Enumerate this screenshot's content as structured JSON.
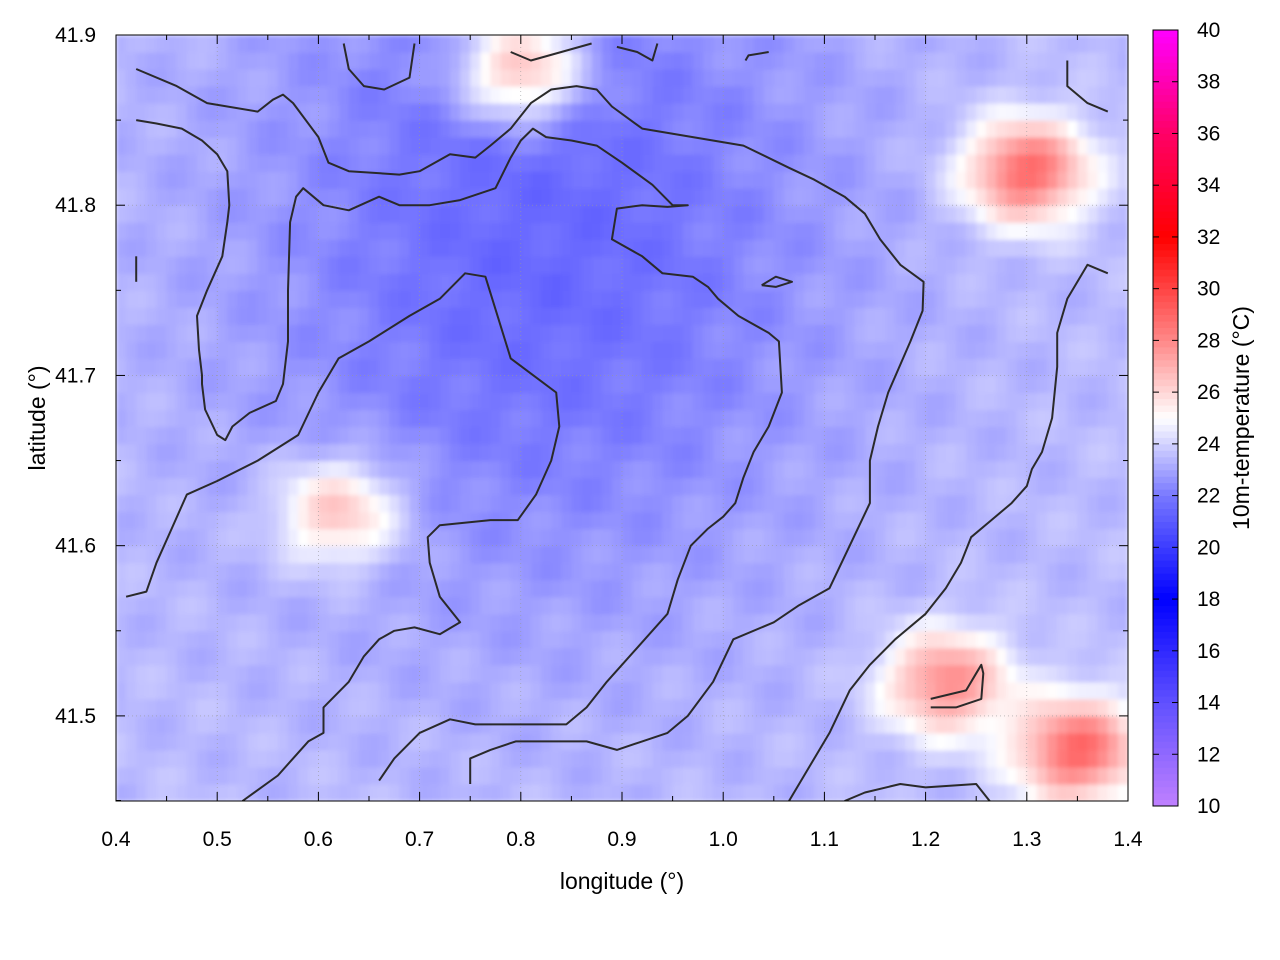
{
  "chart_data": {
    "type": "heatmap",
    "title": "",
    "xlabel": "longitude (°)",
    "ylabel": "latitude (°)",
    "colorbar_label": "10m-temperature (°C)",
    "xlim": [
      0.4,
      1.4
    ],
    "ylim": [
      41.45,
      41.9
    ],
    "xticks": [
      "0.4",
      "0.5",
      "0.6",
      "0.7",
      "0.8",
      "0.9",
      "1.0",
      "1.1",
      "1.2",
      "1.3",
      "1.4"
    ],
    "yticks": [
      "41.5",
      "41.6",
      "41.7",
      "41.8",
      "41.9"
    ],
    "colorbar_range": [
      10,
      40
    ],
    "colorbar_ticks": [
      "10",
      "12",
      "14",
      "16",
      "18",
      "20",
      "22",
      "24",
      "26",
      "28",
      "30",
      "32",
      "34",
      "36",
      "38",
      "40"
    ],
    "colorscale": [
      {
        "value": 10,
        "color": "#c080ff"
      },
      {
        "value": 14,
        "color": "#6050ff"
      },
      {
        "value": 18,
        "color": "#0000ff"
      },
      {
        "value": 22,
        "color": "#7878ff"
      },
      {
        "value": 25,
        "color": "#ffffff"
      },
      {
        "value": 28,
        "color": "#ff8888"
      },
      {
        "value": 32,
        "color": "#ff0000"
      },
      {
        "value": 36,
        "color": "#ff0066"
      },
      {
        "value": 40,
        "color": "#ff00ff"
      }
    ],
    "grid": true,
    "field_summary": {
      "cool_core_center": [
        0.82,
        41.78
      ],
      "cool_core_temperature": 21.5,
      "background_temperature": 23.5,
      "warm_regions": [
        {
          "name": "north edge",
          "center": [
            0.8,
            41.88
          ],
          "temperature": 28
        },
        {
          "name": "northeast",
          "center": [
            1.3,
            41.82
          ],
          "temperature": 29
        },
        {
          "name": "southeast",
          "center": [
            1.22,
            41.52
          ],
          "temperature": 28
        },
        {
          "name": "south-east corner",
          "center": [
            1.35,
            41.48
          ],
          "temperature": 29
        },
        {
          "name": "spot",
          "center": [
            0.62,
            41.62
          ],
          "temperature": 27
        }
      ]
    },
    "contours": [
      [
        [
          0.42,
          41.88
        ],
        [
          0.46,
          41.87
        ],
        [
          0.49,
          41.86
        ],
        [
          0.54,
          41.855
        ],
        [
          0.555,
          41.862
        ],
        [
          0.565,
          41.865
        ],
        [
          0.575,
          41.86
        ],
        [
          0.6,
          41.84
        ],
        [
          0.61,
          41.825
        ],
        [
          0.63,
          41.82
        ],
        [
          0.68,
          41.818
        ],
        [
          0.7,
          41.82
        ],
        [
          0.73,
          41.83
        ],
        [
          0.755,
          41.828
        ],
        [
          0.77,
          41.835
        ],
        [
          0.79,
          41.845
        ],
        [
          0.81,
          41.86
        ],
        [
          0.83,
          41.868
        ],
        [
          0.855,
          41.87
        ],
        [
          0.875,
          41.868
        ],
        [
          0.89,
          41.858
        ],
        [
          0.92,
          41.845
        ],
        [
          0.97,
          41.84
        ],
        [
          1.02,
          41.835
        ],
        [
          1.065,
          41.822
        ],
        [
          1.09,
          41.815
        ],
        [
          1.12,
          41.805
        ],
        [
          1.14,
          41.795
        ],
        [
          1.155,
          41.78
        ],
        [
          1.175,
          41.765
        ],
        [
          1.198,
          41.755
        ],
        [
          1.197,
          41.738
        ],
        [
          1.185,
          41.72
        ],
        [
          1.163,
          41.69
        ],
        [
          1.153,
          41.67
        ],
        [
          1.145,
          41.65
        ],
        [
          1.145,
          41.625
        ],
        [
          1.125,
          41.6
        ],
        [
          1.105,
          41.575
        ],
        [
          1.075,
          41.565
        ],
        [
          1.05,
          41.555
        ],
        [
          1.01,
          41.545
        ],
        [
          0.99,
          41.52
        ],
        [
          0.965,
          41.5
        ],
        [
          0.945,
          41.49
        ],
        [
          0.92,
          41.485
        ],
        [
          0.895,
          41.48
        ],
        [
          0.865,
          41.485
        ],
        [
          0.835,
          41.485
        ],
        [
          0.795,
          41.485
        ],
        [
          0.77,
          41.48
        ],
        [
          0.75,
          41.475
        ],
        [
          0.75,
          41.46
        ]
      ],
      [
        [
          0.42,
          41.85
        ],
        [
          0.44,
          41.848
        ],
        [
          0.465,
          41.845
        ],
        [
          0.485,
          41.838
        ],
        [
          0.5,
          41.83
        ],
        [
          0.51,
          41.82
        ],
        [
          0.512,
          41.8
        ],
        [
          0.51,
          41.79
        ],
        [
          0.505,
          41.77
        ],
        [
          0.49,
          41.75
        ],
        [
          0.48,
          41.735
        ],
        [
          0.482,
          41.715
        ],
        [
          0.485,
          41.7
        ],
        [
          0.485,
          41.695
        ],
        [
          0.488,
          41.68
        ],
        [
          0.5,
          41.665
        ],
        [
          0.508,
          41.662
        ],
        [
          0.515,
          41.67
        ],
        [
          0.532,
          41.678
        ],
        [
          0.558,
          41.685
        ],
        [
          0.565,
          41.695
        ],
        [
          0.57,
          41.72
        ],
        [
          0.57,
          41.75
        ],
        [
          0.572,
          41.79
        ],
        [
          0.578,
          41.805
        ],
        [
          0.585,
          41.81
        ],
        [
          0.605,
          41.8
        ],
        [
          0.63,
          41.797
        ],
        [
          0.66,
          41.805
        ],
        [
          0.68,
          41.8
        ],
        [
          0.71,
          41.8
        ],
        [
          0.74,
          41.803
        ],
        [
          0.775,
          41.81
        ],
        [
          0.79,
          41.828
        ],
        [
          0.8,
          41.838
        ],
        [
          0.812,
          41.845
        ],
        [
          0.825,
          41.84
        ],
        [
          0.85,
          41.838
        ],
        [
          0.875,
          41.835
        ],
        [
          0.9,
          41.825
        ],
        [
          0.93,
          41.812
        ],
        [
          0.95,
          41.8
        ],
        [
          0.965,
          41.8
        ],
        [
          0.945,
          41.799
        ],
        [
          0.92,
          41.8
        ],
        [
          0.895,
          41.798
        ],
        [
          0.89,
          41.78
        ],
        [
          0.92,
          41.77
        ],
        [
          0.94,
          41.76
        ],
        [
          0.97,
          41.758
        ],
        [
          0.985,
          41.752
        ],
        [
          0.995,
          41.745
        ],
        [
          1.015,
          41.735
        ],
        [
          1.045,
          41.725
        ],
        [
          1.055,
          41.72
        ],
        [
          1.058,
          41.69
        ],
        [
          1.045,
          41.67
        ],
        [
          1.03,
          41.655
        ],
        [
          1.02,
          41.64
        ],
        [
          1.012,
          41.625
        ],
        [
          1.0,
          41.617
        ],
        [
          0.985,
          41.61
        ],
        [
          0.968,
          41.6
        ],
        [
          0.955,
          41.58
        ],
        [
          0.945,
          41.56
        ],
        [
          0.915,
          41.54
        ],
        [
          0.885,
          41.52
        ],
        [
          0.865,
          41.505
        ],
        [
          0.845,
          41.495
        ],
        [
          0.795,
          41.495
        ],
        [
          0.755,
          41.495
        ],
        [
          0.73,
          41.498
        ],
        [
          0.7,
          41.49
        ],
        [
          0.675,
          41.475
        ],
        [
          0.66,
          41.462
        ]
      ],
      [
        [
          0.41,
          41.57
        ],
        [
          0.43,
          41.573
        ],
        [
          0.44,
          41.59
        ],
        [
          0.455,
          41.61
        ],
        [
          0.47,
          41.63
        ],
        [
          0.5,
          41.638
        ],
        [
          0.54,
          41.65
        ],
        [
          0.58,
          41.665
        ],
        [
          0.6,
          41.69
        ],
        [
          0.62,
          41.71
        ],
        [
          0.65,
          41.72
        ],
        [
          0.69,
          41.735
        ],
        [
          0.72,
          41.745
        ],
        [
          0.745,
          41.76
        ],
        [
          0.765,
          41.758
        ],
        [
          0.79,
          41.71
        ],
        [
          0.835,
          41.69
        ],
        [
          0.838,
          41.67
        ],
        [
          0.83,
          41.65
        ],
        [
          0.815,
          41.63
        ],
        [
          0.797,
          41.615
        ],
        [
          0.77,
          41.615
        ],
        [
          0.72,
          41.612
        ],
        [
          0.708,
          41.605
        ],
        [
          0.71,
          41.59
        ],
        [
          0.72,
          41.57
        ],
        [
          0.74,
          41.555
        ],
        [
          0.72,
          41.548
        ],
        [
          0.695,
          41.552
        ],
        [
          0.675,
          41.55
        ],
        [
          0.66,
          41.545
        ],
        [
          0.645,
          41.535
        ],
        [
          0.63,
          41.52
        ],
        [
          0.605,
          41.505
        ],
        [
          0.605,
          41.49
        ],
        [
          0.59,
          41.485
        ],
        [
          0.575,
          41.475
        ],
        [
          0.56,
          41.465
        ],
        [
          0.525,
          41.45
        ]
      ],
      [
        [
          1.12,
          41.45
        ],
        [
          1.14,
          41.455
        ],
        [
          1.175,
          41.46
        ],
        [
          1.2,
          41.458
        ],
        [
          1.25,
          41.46
        ],
        [
          1.27,
          41.445
        ]
      ],
      [
        [
          1.205,
          41.505
        ],
        [
          1.23,
          41.505
        ],
        [
          1.255,
          41.51
        ],
        [
          1.257,
          41.525
        ],
        [
          1.255,
          41.53
        ],
        [
          1.25,
          41.525
        ],
        [
          1.24,
          41.515
        ],
        [
          1.205,
          41.51
        ]
      ],
      [
        [
          1.038,
          41.753
        ],
        [
          1.052,
          41.758
        ],
        [
          1.068,
          41.755
        ],
        [
          1.052,
          41.752
        ],
        [
          1.038,
          41.753
        ]
      ],
      [
        [
          1.34,
          41.885
        ],
        [
          1.34,
          41.87
        ],
        [
          1.36,
          41.86
        ],
        [
          1.38,
          41.855
        ]
      ],
      [
        [
          1.38,
          41.76
        ],
        [
          1.36,
          41.765
        ],
        [
          1.34,
          41.745
        ],
        [
          1.33,
          41.725
        ],
        [
          1.33,
          41.705
        ],
        [
          1.325,
          41.675
        ],
        [
          1.315,
          41.655
        ],
        [
          1.305,
          41.645
        ],
        [
          1.3,
          41.635
        ],
        [
          1.285,
          41.625
        ],
        [
          1.265,
          41.615
        ],
        [
          1.245,
          41.605
        ],
        [
          1.235,
          41.59
        ],
        [
          1.22,
          41.575
        ],
        [
          1.2,
          41.56
        ],
        [
          1.17,
          41.545
        ],
        [
          1.145,
          41.53
        ],
        [
          1.125,
          41.515
        ],
        [
          1.105,
          41.49
        ],
        [
          1.085,
          41.47
        ],
        [
          1.065,
          41.45
        ]
      ],
      [
        [
          0.42,
          41.77
        ],
        [
          0.42,
          41.755
        ]
      ],
      [
        [
          0.625,
          41.895
        ],
        [
          0.63,
          41.88
        ],
        [
          0.645,
          41.87
        ],
        [
          0.665,
          41.868
        ],
        [
          0.69,
          41.875
        ],
        [
          0.695,
          41.895
        ]
      ],
      [
        [
          0.79,
          41.89
        ],
        [
          0.81,
          41.885
        ],
        [
          0.84,
          41.89
        ],
        [
          0.87,
          41.895
        ]
      ],
      [
        [
          0.895,
          41.893
        ],
        [
          0.915,
          41.89
        ],
        [
          0.93,
          41.885
        ],
        [
          0.935,
          41.895
        ]
      ],
      [
        [
          1.022,
          41.885
        ],
        [
          1.025,
          41.888
        ],
        [
          1.045,
          41.89
        ]
      ]
    ]
  }
}
